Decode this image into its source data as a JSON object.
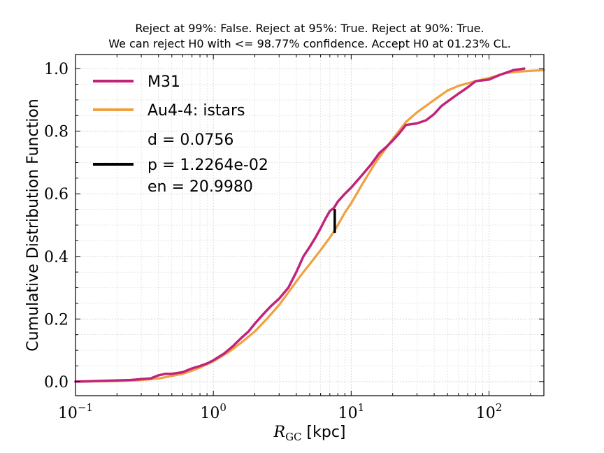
{
  "chart_data": {
    "type": "line",
    "title": "Reject at 99%: False. Reject at 95%: True. Reject at 90%: True.",
    "subtitle": "We can reject H0 with <= 98.77% confidence. Accept H0 at 01.23% CL.",
    "xlabel": {
      "main": "R",
      "sub": "GC",
      "unit": " [kpc]"
    },
    "ylabel": "Cumulative Distribution Function",
    "xscale": "log",
    "xlim": [
      0.1,
      250
    ],
    "ylim": [
      -0.045,
      1.045
    ],
    "grid": true,
    "legend_placement": "top-left",
    "x_ticks": [
      {
        "value": 0.1,
        "base": "10",
        "exp": "−1"
      },
      {
        "value": 1,
        "base": "10",
        "exp": "0"
      },
      {
        "value": 10,
        "base": "10",
        "exp": "1"
      },
      {
        "value": 100,
        "base": "10",
        "exp": "2"
      }
    ],
    "y_ticks": [
      {
        "value": 0.0,
        "label": "0.0"
      },
      {
        "value": 0.2,
        "label": "0.2"
      },
      {
        "value": 0.4,
        "label": "0.4"
      },
      {
        "value": 0.6,
        "label": "0.6"
      },
      {
        "value": 0.8,
        "label": "0.8"
      },
      {
        "value": 1.0,
        "label": "1.0"
      }
    ],
    "series": [
      {
        "name": "M31",
        "color": "#c0247a",
        "x": [
          0.1,
          0.25,
          0.3,
          0.35,
          0.4,
          0.45,
          0.5,
          0.6,
          0.7,
          0.8,
          0.9,
          1.0,
          1.2,
          1.4,
          1.6,
          1.8,
          2.0,
          2.3,
          2.6,
          3.0,
          3.5,
          4.0,
          4.5,
          5.0,
          5.5,
          6.0,
          6.5,
          7.0,
          7.5,
          8.0,
          9.0,
          10.0,
          12.0,
          14.0,
          16.0,
          18.0,
          20.0,
          22.0,
          25.0,
          30.0,
          35.0,
          40.0,
          45.0,
          50.0,
          60.0,
          70.0,
          80.0,
          100.0,
          120.0,
          150.0,
          180.0
        ],
        "y": [
          0.0,
          0.005,
          0.008,
          0.01,
          0.02,
          0.025,
          0.025,
          0.03,
          0.042,
          0.05,
          0.058,
          0.068,
          0.09,
          0.115,
          0.14,
          0.16,
          0.185,
          0.215,
          0.24,
          0.265,
          0.3,
          0.35,
          0.4,
          0.43,
          0.46,
          0.49,
          0.52,
          0.545,
          0.555,
          0.575,
          0.6,
          0.62,
          0.66,
          0.695,
          0.73,
          0.75,
          0.77,
          0.79,
          0.82,
          0.825,
          0.835,
          0.855,
          0.88,
          0.895,
          0.92,
          0.94,
          0.96,
          0.965,
          0.98,
          0.995,
          1.0
        ]
      },
      {
        "name": "Au4-4: istars",
        "color": "#f0a040",
        "x": [
          0.1,
          0.2,
          0.3,
          0.4,
          0.5,
          0.6,
          0.7,
          0.8,
          1.0,
          1.3,
          1.6,
          2.0,
          2.5,
          3.0,
          3.5,
          4.0,
          4.5,
          5.0,
          6.0,
          7.0,
          7.5,
          8.0,
          9.0,
          10.0,
          12.0,
          15.0,
          20.0,
          25.0,
          30.0,
          40.0,
          50.0,
          60.0,
          80.0,
          100.0,
          130.0,
          160.0,
          200.0,
          250.0
        ],
        "y": [
          0.0,
          0.002,
          0.005,
          0.01,
          0.018,
          0.025,
          0.035,
          0.045,
          0.065,
          0.095,
          0.125,
          0.16,
          0.205,
          0.245,
          0.285,
          0.32,
          0.35,
          0.375,
          0.42,
          0.46,
          0.48,
          0.5,
          0.54,
          0.57,
          0.63,
          0.7,
          0.775,
          0.83,
          0.86,
          0.9,
          0.93,
          0.945,
          0.96,
          0.97,
          0.985,
          0.99,
          0.993,
          0.995
        ]
      }
    ],
    "ks_stat": {
      "name": "d = 0.0756",
      "lines": [
        "d = 0.0756",
        "p = 1.2264e-02",
        "en = 20.9980"
      ],
      "color": "#000000",
      "x": 7.6,
      "y_from": 0.475,
      "y_to": 0.551
    }
  }
}
